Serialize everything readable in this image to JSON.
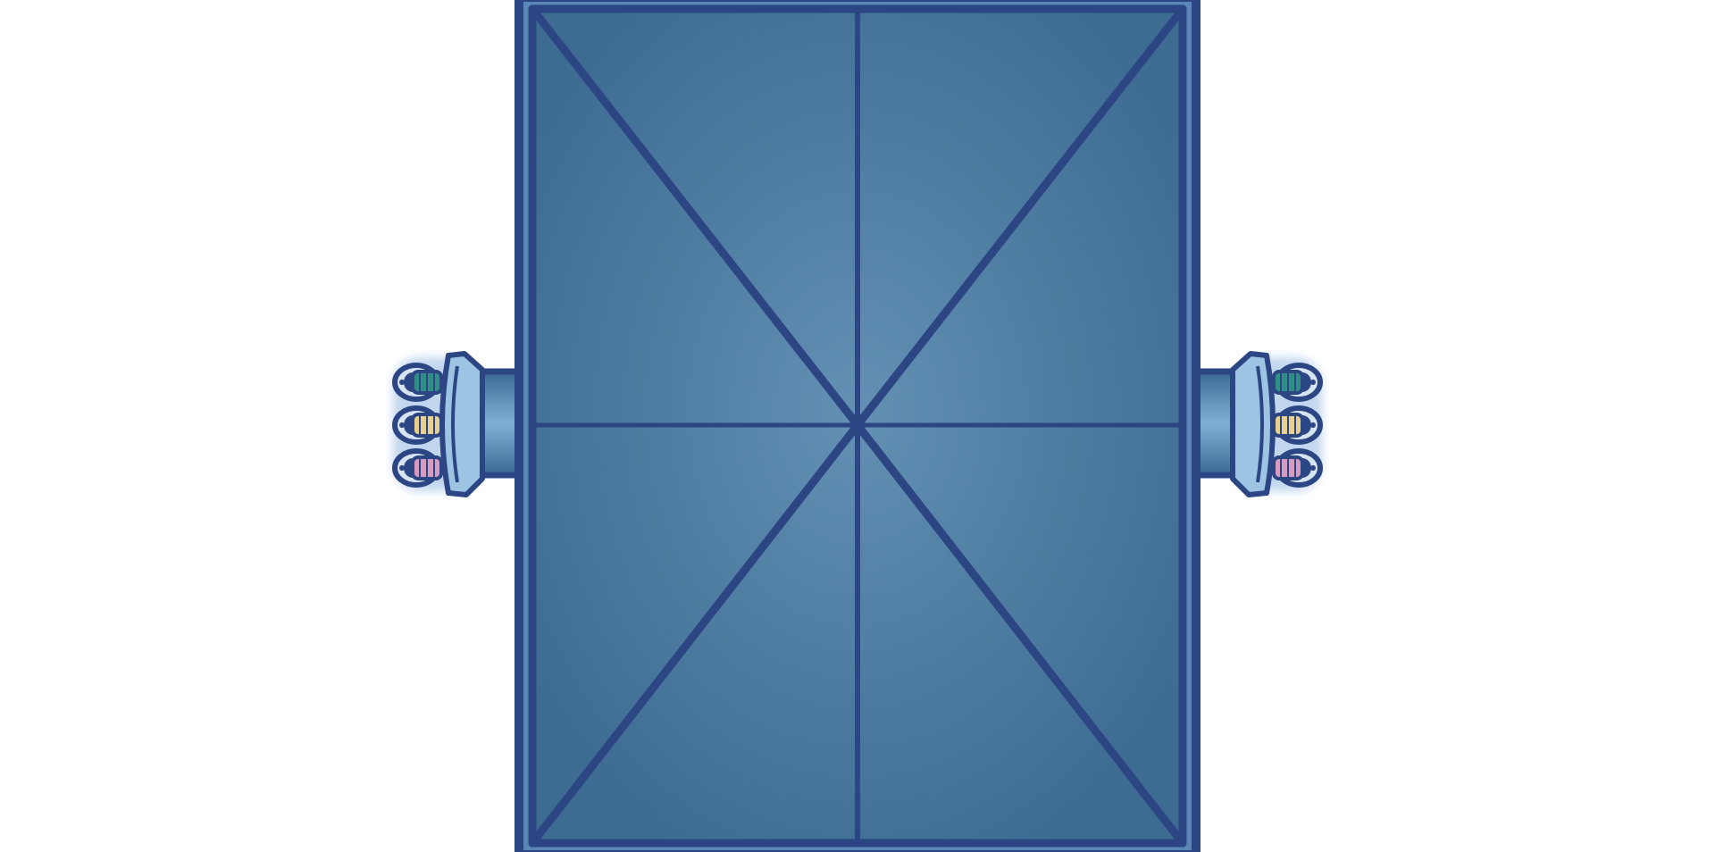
{
  "scene": {
    "colors": {
      "background": "#ffffff",
      "outline": "#2c4683",
      "panel_edge": "#3d6b92",
      "panel_center": "#6390b3",
      "rim": "#5b87b6",
      "pipe_dark": "#3a6a95",
      "pipe_light": "#7fb0d4",
      "flange": "#9ec4e4",
      "coupling_teal": "#2f8f86",
      "coupling_yellow": "#e6d090",
      "coupling_pink": "#d79ac0",
      "glow": "#bcd3ee"
    },
    "roof_tile": {
      "icon": "pyramid-roof-icon",
      "panels": 8
    },
    "connectors": [
      {
        "side": "left",
        "icon": "pipe-connector-icon",
        "couplings": [
          "teal",
          "yellow",
          "pink"
        ]
      },
      {
        "side": "right",
        "icon": "pipe-connector-icon",
        "couplings": [
          "teal",
          "yellow",
          "pink"
        ]
      }
    ]
  }
}
